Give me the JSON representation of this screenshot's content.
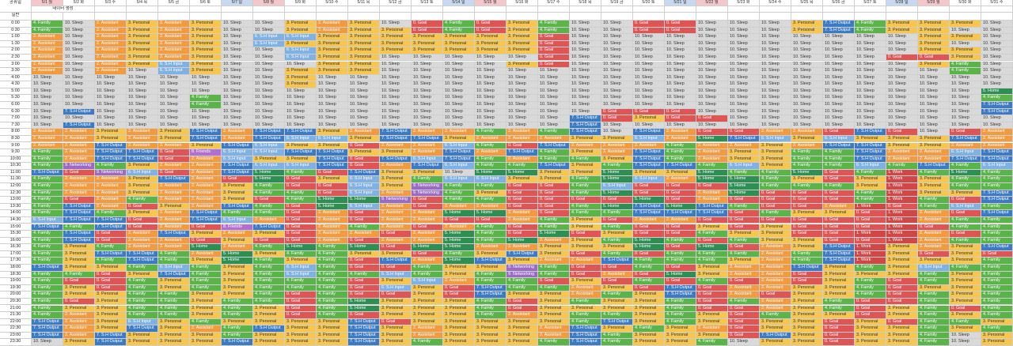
{
  "corner": [
    "공휴일",
    "일반",
    "데이터 생성"
  ],
  "days": [
    "5/1 월",
    "5/2 화",
    "5/3 수",
    "5/4 목",
    "5/5 금",
    "5/6 토",
    "5/7 일",
    "5/8 월",
    "5/9 화",
    "5/10 수",
    "5/11 목",
    "5/12 금",
    "5/13 토",
    "5/14 일",
    "5/15 월",
    "5/16 화",
    "5/17 수",
    "5/18 목",
    "5/19 금",
    "5/20 토",
    "5/21 일",
    "5/22 월",
    "5/23 화",
    "5/24 수",
    "5/25 목",
    "5/26 금",
    "5/27 토",
    "5/28 일",
    "5/29 월",
    "5/30 화",
    "5/31 수"
  ],
  "day_styles": [
    "hl",
    "wk",
    "wk",
    "wk",
    "wk",
    "wk",
    "blue",
    "hl",
    "wk",
    "wk",
    "wk",
    "wk",
    "wk",
    "blue",
    "hl",
    "wk",
    "wk",
    "wk",
    "wk",
    "wk",
    "blue",
    "hl",
    "wk",
    "wk",
    "wk",
    "wk",
    "wk",
    "blue",
    "hl",
    "wk",
    "wk"
  ],
  "times": [
    "0:00",
    "0:30",
    "1:00",
    "1:30",
    "2:00",
    "2:30",
    "3:00",
    "3:30",
    "4:00",
    "4:30",
    "5:00",
    "5:30",
    "6:00",
    "6:30",
    "7:00",
    "7:30",
    "8:00",
    "8:30",
    "9:00",
    "9:30",
    "10:00",
    "10:30",
    "11:00",
    "11:30",
    "12:00",
    "12:30",
    "13:00",
    "13:30",
    "14:00",
    "14:30",
    "15:00",
    "15:30",
    "16:00",
    "16:30",
    "17:00",
    "17:30",
    "18:00",
    "18:30",
    "19:00",
    "19:30",
    "20:00",
    "20:30",
    "21:00",
    "21:30",
    "22:00",
    "22:30",
    "23:00",
    "23:30"
  ],
  "categories": {
    "F": {
      "label": "4. Family",
      "cls": "c-Family"
    },
    "S": {
      "label": "10. Sleep",
      "cls": "c-Sleep"
    },
    "A": {
      "label": "2. Assistant",
      "cls": "c-Assistant"
    },
    "P": {
      "label": "3. Personal",
      "cls": "c-Personal"
    },
    "G": {
      "label": "0. Goal",
      "cls": "c-Goal"
    },
    "O": {
      "label": "7. S.H Output",
      "cls": "c-Output"
    },
    "I": {
      "label": "6. S.H Input",
      "cls": "c-Input"
    },
    "H": {
      "label": "5. Home",
      "cls": "c-Home"
    },
    "N": {
      "label": "9. Networking",
      "cls": "c-Networking"
    },
    "R": {
      "label": "8. Friends",
      "cls": "c-Friends"
    },
    "W": {
      "label": "1. Work",
      "cls": "c-Work"
    }
  },
  "grid": [
    "FSAPAPSSPAPSGFGPFSSGGSSSPOFPPPS",
    "FSAPAPSSPAPPGFGPFSSGGSSSPOFPPSS",
    "ASAPAPSIIPPPPPPPGSSSSSSSSSSSPPS",
    "ASAPAPSIPPPPPPPPGSSSSSSSSSSSPSS",
    "ASAPAPSSIPPPPPPPGSSSSSSSSSSSPPS",
    "ASAPAPSSIPPSSSSSGSSSSSSSSSSGGPS",
    "ASAPIPSSSPPSSSSPGSSSSSSSSSSSPFS",
    "ASASIPSSPPPSSSSSSSSSSSSSSSSSSFS",
    "SSSSSSSSPSSSSSSSSSSSSSSSSSSSSSS",
    "SSSSSSSSPSSSSSSSSSSSSSSSSSSSSSS",
    "SSSSSSSSSSSSSSSSSSSSSSSSSSSSSSH",
    "SSSSSFSSSSSSSSSSSSSSSSSSSSSSSSF",
    "SSSSSFSSSSSSSSSSSSSSSSSSSSSSSSO",
    "SOSSSSSSSSSSSSSSSSGGGSSSSSSSSSO",
    "SSSSSSSSSSSSSSSSSOGPGGSSSSSSSSS",
    "SOSSSSSSSSSSSSSSSOSSSSSSSSSSSSS",
    "AAPAPOAOOPAOAAFAFOSOAGGAAGOGSGA",
    "AAPAPOAOIIPOOPAAAPPIAHOIPIPPPOA",
    "AAOAAPOIPPGAAIFGOAAAFAAPAOOPPAA",
    "FAOOGRIIOOPPAOAOFPAOFAPPFFOAAIO",
    "FAOOGAIPPOGOIOFAFFPOFAPPFFOAAOO",
    "FNFPAAOIIOGAOIFFOPFOOFIPFFIFOFI",
    "OGNIGAOHFGOPPSHHPPHPPHFFHGFWFHF",
    "FAAPOAGHGPIPFIIPPFHIAHHFPGPWPFF",
    "FAAPAAPFGGIPNFFGGFIGGGHFFFPWPFF",
    "FAAPAAPFFGIANFPGGFHGGAHGGGFWPPO",
    "FGAFAAPGFHHNGFFGGGGHGAGGGGFWFGO",
    "FOAGPAOFGHIAGAAGGFHOHOFGGAWGFIF",
    "FOFPAOFFGAGAAHHAGFFOOOGFPPGWAGO",
    "IOOGAOIAGAGAAGGAFPGAAGGGGGGWAFF",
    "OFOGAGROGAFAGAFGFPFGGPGPGGGWGFF",
    "FOGAOPAPGAAGAHFGHGPGGFPPGGWWAGF",
    "FOGAAGPGGAGAAHFHAPFHFGFPPGGWAFF",
    "FPFAAHAFHFHGHHAAPPPHGHGAPOWPAPO",
    "FPOOFAHPFFPPGFPOPGFGFFFAFOWPGPG",
    "FPFOFPHFPFGOAHOPAAOFFFPAFOWPPPF",
    "OPPFIFPFIFGGFPPNFGGFGPAAOPFPIFF",
    "FFGPOFPFIFFIFPFNFGAGHPAAGPPPFPF",
    "FGGFPFPFFFGPIAFFGPGFGFGAGPFGFPF",
    "FPGFPFPFFFGIPGOFFAPGOGAAPPFGPPF",
    "FPPFFPPFGFGGPGOPPAFPOGAGPPFGFPF",
    "FGPFFPFFGFHPPPFGPFPPFGFAPFGGFPF",
    "FPPFFPFPGFHPPPFGPPPPFGGAPFGPFGF",
    "FAPFFPFPGFGPPPFAPFFPFPGFPPGPFPF",
    "OAPIPFPPPPOGPPPPPFOPFPGPPGPGFFP",
    "OAPOPAFOPPOPAPPPAOPFPAGPPGPPFPF",
    "OAOPPPFPPPOPAPPPAOFPPPGOPGPPFSP",
    "SPOPPPOPPPOPFPPPFOFPPFSPPGPPFSP"
  ]
}
